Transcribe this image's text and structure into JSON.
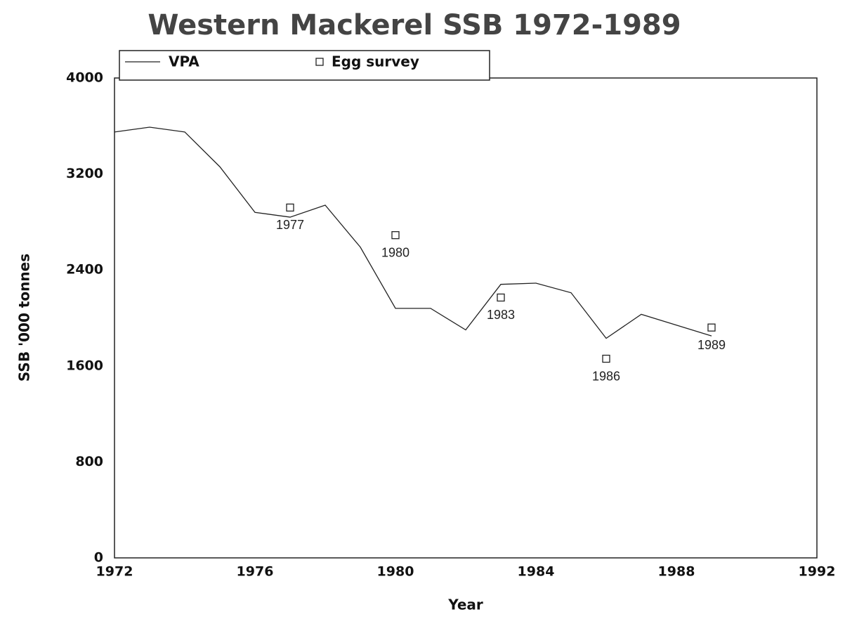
{
  "chart_data": {
    "type": "line",
    "title": "Western Mackerel SSB 1972-1989",
    "x_label": "Year",
    "y_label": "SSB '000 tonnes",
    "xlim": [
      1972,
      1992
    ],
    "xticks": [
      1972,
      1976,
      1980,
      1984,
      1988,
      1992
    ],
    "ylim": [
      0,
      4000
    ],
    "yticks": [
      0,
      800,
      1600,
      2400,
      3200,
      4000
    ],
    "legend": "top-left",
    "series": [
      {
        "name": "VPA",
        "color": "#222222",
        "mode": "line",
        "x": [
          1972,
          1973,
          1974,
          1975,
          1976,
          1977,
          1978,
          1979,
          1980,
          1981,
          1982,
          1983,
          1984,
          1985,
          1986,
          1987,
          1988,
          1989
        ],
        "values": [
          3550,
          3590,
          3550,
          3260,
          2880,
          2840,
          2940,
          2590,
          2080,
          2080,
          1900,
          2280,
          2290,
          2210,
          1830,
          2030,
          1940,
          1850
        ]
      },
      {
        "name": "Egg survey",
        "color": "#222222",
        "mode": "markers",
        "x": [
          1977,
          1980,
          1983,
          1986,
          1989
        ],
        "values": [
          2920,
          2690,
          2170,
          1660,
          1920
        ],
        "point_labels": [
          "1977",
          "1980",
          "1983",
          "1986",
          "1989"
        ]
      }
    ]
  }
}
